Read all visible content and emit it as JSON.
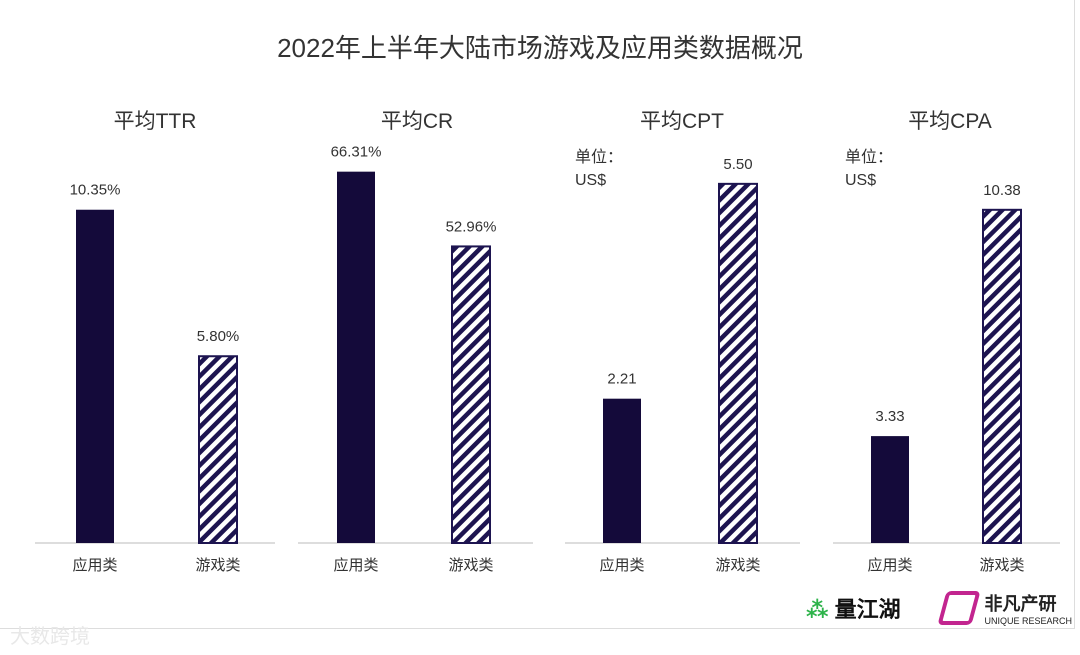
{
  "title": "2022年上半年大陆市场游戏及应用类数据概况",
  "colors": {
    "solid": "#140a3a",
    "hatch": "#1d1450",
    "axis": "#bbbbbb",
    "text": "#333333"
  },
  "chart_data": [
    {
      "type": "bar",
      "title": "平均TTR",
      "unit": "",
      "categories": [
        "应用类",
        "游戏类"
      ],
      "values": [
        10.35,
        5.8
      ],
      "labels": [
        "10.35%",
        "5.80%"
      ],
      "styles": [
        "solid",
        "hatched"
      ]
    },
    {
      "type": "bar",
      "title": "平均CR",
      "unit": "",
      "categories": [
        "应用类",
        "游戏类"
      ],
      "values": [
        66.31,
        52.96
      ],
      "labels": [
        "66.31%",
        "52.96%"
      ],
      "styles": [
        "solid",
        "hatched"
      ]
    },
    {
      "type": "bar",
      "title": "平均CPT",
      "unit": [
        "单位：",
        "US$"
      ],
      "categories": [
        "应用类",
        "游戏类"
      ],
      "values": [
        2.21,
        5.5
      ],
      "labels": [
        "2.21",
        "5.50"
      ],
      "styles": [
        "solid",
        "hatched"
      ]
    },
    {
      "type": "bar",
      "title": "平均CPA",
      "unit": [
        "单位：",
        "US$"
      ],
      "categories": [
        "应用类",
        "游戏类"
      ],
      "values": [
        3.33,
        10.38
      ],
      "labels": [
        "3.33",
        "10.38"
      ],
      "styles": [
        "solid",
        "hatched"
      ]
    }
  ],
  "logos": {
    "lianghu": "量江湖",
    "unique_cn": "非凡产研",
    "unique_en": "UNIQUE RESEARCH",
    "watermark": "大数跨境"
  }
}
